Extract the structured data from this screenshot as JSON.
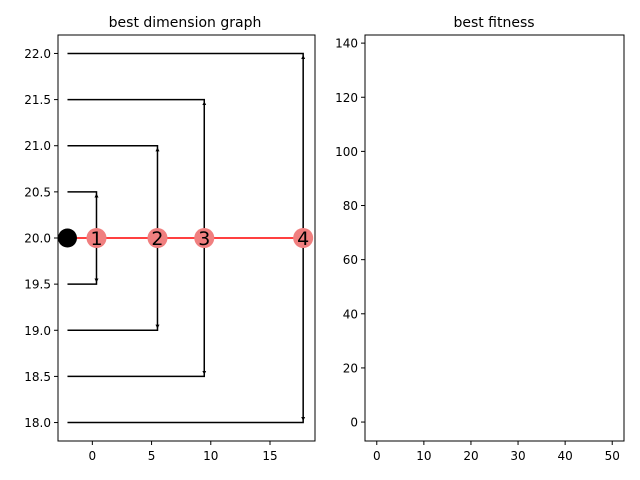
{
  "chart_data": [
    {
      "type": "line",
      "title": "best dimension graph",
      "xlabel": "",
      "ylabel": "",
      "xlim": [
        -2.9,
        18.8
      ],
      "ylim": [
        17.8,
        22.2
      ],
      "xticks": [
        "0",
        "5",
        "10",
        "15"
      ],
      "xtick_values": [
        0,
        5,
        10,
        15
      ],
      "yticks": [
        "18.0",
        "18.5",
        "19.0",
        "19.5",
        "20.0",
        "20.5",
        "21.0",
        "21.5",
        "22.0"
      ],
      "ytick_values": [
        18.0,
        18.5,
        19.0,
        19.5,
        20.0,
        20.5,
        21.0,
        21.5,
        22.0
      ],
      "brackets": [
        {
          "x_start": -2.1,
          "x_end": 0.35,
          "y_high": 20.5,
          "y_low": 19.5
        },
        {
          "x_start": -2.1,
          "x_end": 5.5,
          "y_high": 21.0,
          "y_low": 19.0
        },
        {
          "x_start": -2.1,
          "x_end": 9.45,
          "y_high": 21.5,
          "y_low": 18.5
        },
        {
          "x_start": -2.1,
          "x_end": 17.8,
          "y_high": 22.0,
          "y_low": 18.0
        }
      ],
      "path": {
        "x": [
          -2.1,
          17.8
        ],
        "y": [
          20.0,
          20.0
        ],
        "color": "#ff0000"
      },
      "root_node": {
        "x": -2.1,
        "y": 20.0,
        "color": "#000000"
      },
      "nodes": [
        {
          "label": "1",
          "x": 0.35,
          "y": 20.0
        },
        {
          "label": "2",
          "x": 5.5,
          "y": 20.0
        },
        {
          "label": "3",
          "x": 9.45,
          "y": 20.0
        },
        {
          "label": "4",
          "x": 17.8,
          "y": 20.0
        }
      ],
      "node_color": "#f07f7f",
      "grid": false
    },
    {
      "type": "line",
      "title": "best fitness",
      "xlabel": "",
      "ylabel": "",
      "xlim": [
        -2.5,
        52.5
      ],
      "ylim": [
        -7,
        143
      ],
      "xticks": [
        "0",
        "10",
        "20",
        "30",
        "40",
        "50"
      ],
      "xtick_values": [
        0,
        10,
        20,
        30,
        40,
        50
      ],
      "yticks": [
        "0",
        "20",
        "40",
        "60",
        "80",
        "100",
        "120",
        "140"
      ],
      "ytick_values": [
        0,
        20,
        40,
        60,
        80,
        100,
        120,
        140
      ],
      "series": [],
      "grid": false
    }
  ]
}
